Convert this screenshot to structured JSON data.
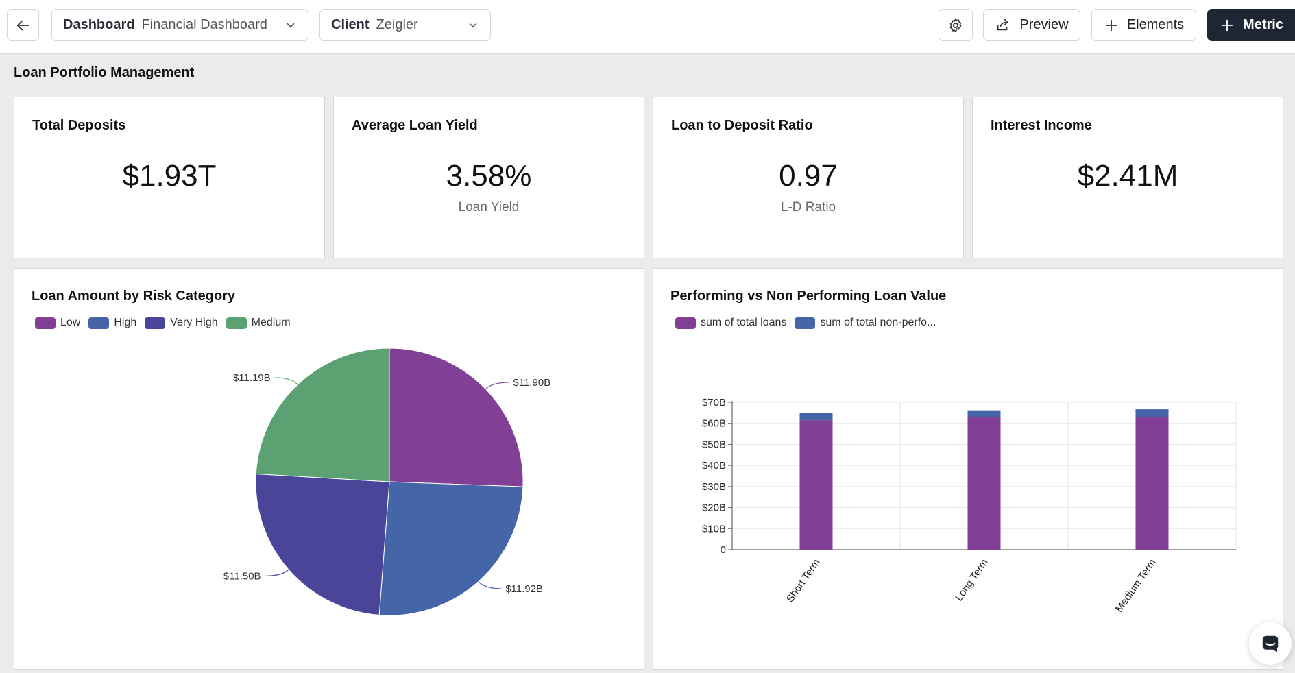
{
  "header": {
    "dashboard_label": "Dashboard",
    "dashboard_value": "Financial Dashboard",
    "client_label": "Client",
    "client_value": "Zeigler",
    "preview_label": "Preview",
    "elements_label": "Elements",
    "metric_label": "Metric"
  },
  "page": {
    "title": "Loan Portfolio Management"
  },
  "kpis": [
    {
      "title": "Total Deposits",
      "value": "$1.93T",
      "sub": ""
    },
    {
      "title": "Average Loan Yield",
      "value": "3.58%",
      "sub": "Loan Yield"
    },
    {
      "title": "Loan to Deposit Ratio",
      "value": "0.97",
      "sub": "L-D Ratio"
    },
    {
      "title": "Interest Income",
      "value": "$2.41M",
      "sub": ""
    }
  ],
  "colors": {
    "purple": "#813f95",
    "blue": "#4466a9",
    "indigo": "#4a4599",
    "green": "#5ba172",
    "dark": "#1f2633"
  },
  "chart_data": [
    {
      "type": "pie",
      "title": "Loan Amount by Risk Category",
      "legend": [
        "Low",
        "High",
        "Very High",
        "Medium"
      ],
      "slices": [
        {
          "label": "Low",
          "value": 11.9,
          "display": "$11.90B",
          "color": "#813f95"
        },
        {
          "label": "High",
          "value": 11.92,
          "display": "$11.92B",
          "color": "#4466a9"
        },
        {
          "label": "Very High",
          "value": 11.5,
          "display": "$11.50B",
          "color": "#4a4599"
        },
        {
          "label": "Medium",
          "value": 11.19,
          "display": "$11.19B",
          "color": "#5ba172"
        }
      ]
    },
    {
      "type": "bar",
      "stacked": true,
      "title": "Performing vs Non Performing Loan Value",
      "categories": [
        "Short Term",
        "Long Term",
        "Medium Term"
      ],
      "series": [
        {
          "name": "sum of total loans",
          "values": [
            61.5,
            63,
            63
          ],
          "color": "#813f95"
        },
        {
          "name": "sum of total non-perfo...",
          "values": [
            3.5,
            3.2,
            3.7
          ],
          "color": "#4466a9"
        }
      ],
      "ylim": [
        0,
        70
      ],
      "yticks": [
        "0",
        "$10B",
        "$20B",
        "$30B",
        "$40B",
        "$50B",
        "$60B",
        "$70B"
      ]
    }
  ]
}
